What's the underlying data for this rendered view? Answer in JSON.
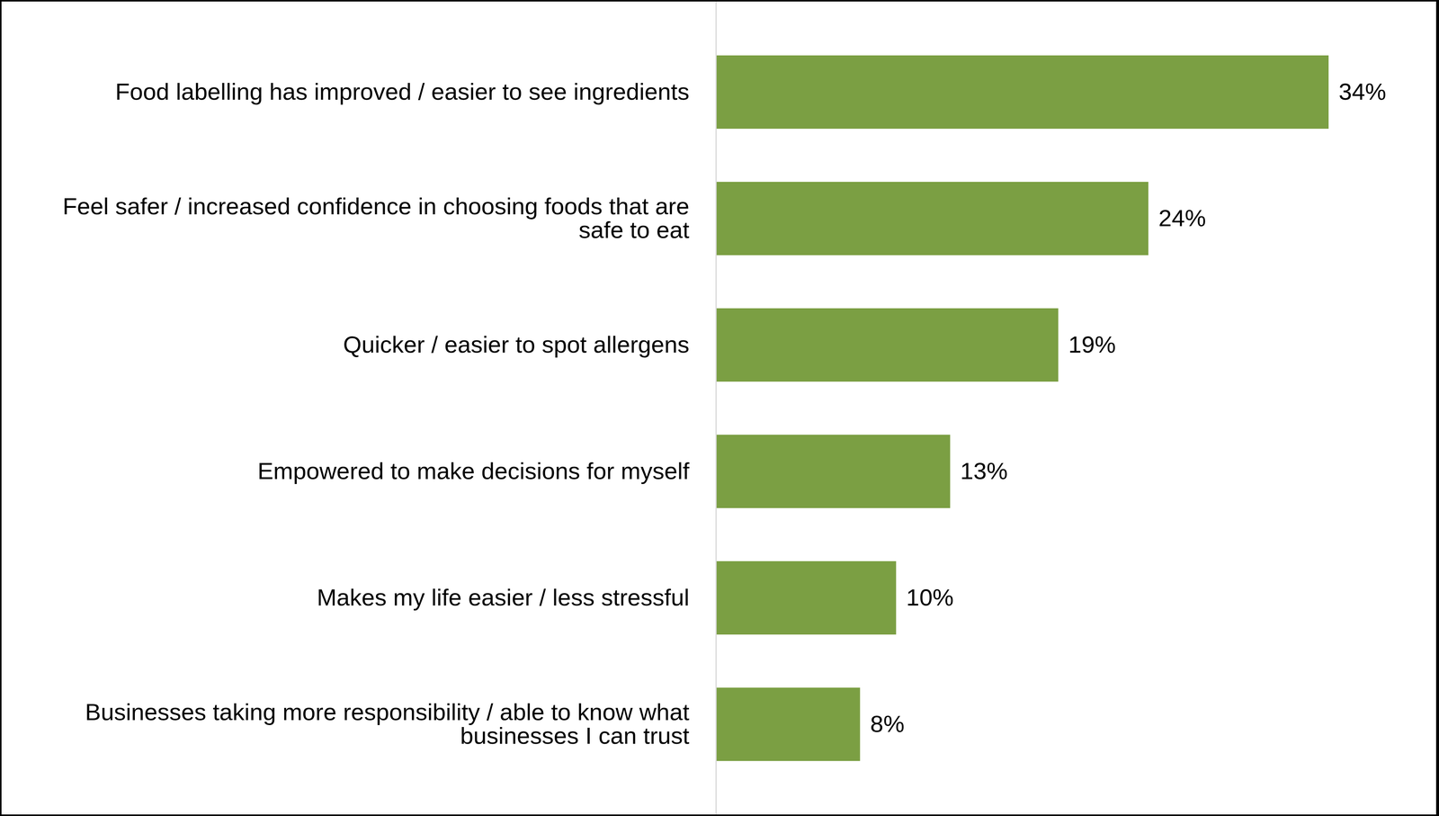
{
  "chart_data": {
    "type": "bar",
    "orientation": "horizontal",
    "categories": [
      "Food labelling has improved / easier to see ingredients",
      "Feel safer / increased confidence in choosing foods that are safe to eat",
      "Quicker / easier to spot allergens",
      "Empowered to make decisions for myself",
      "Makes my life easier / less stressful",
      "Businesses taking more responsibility / able to know what businesses I can trust"
    ],
    "values": [
      34,
      24,
      19,
      13,
      10,
      8
    ],
    "value_labels": [
      "34%",
      "24%",
      "19%",
      "13%",
      "10%",
      "8%"
    ],
    "color": "#7b9f43",
    "xlim": [
      0,
      40
    ],
    "tick_labels": "y",
    "data_labels": true,
    "grid": false
  }
}
